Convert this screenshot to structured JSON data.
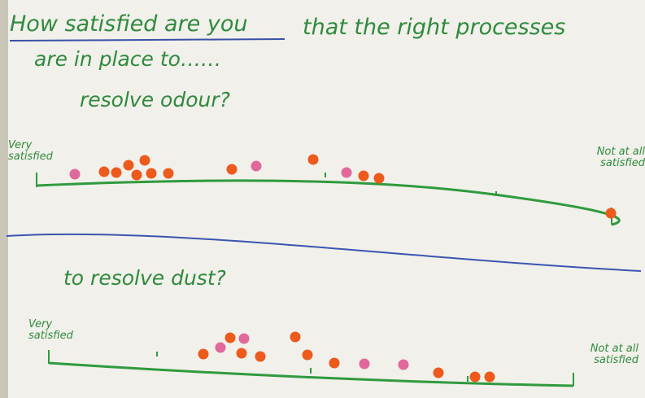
{
  "header": {
    "title_underlined": "How satisfied are you",
    "title_rest": "that the right processes",
    "title_line2": "are in place to……"
  },
  "sections": [
    {
      "question": "resolve odour?",
      "left_label": "Very satisfied",
      "right_label": "Not at all satisfied"
    },
    {
      "question": "to resolve dust?",
      "left_label": "Very satisfied",
      "right_label": "Not at all satisfied"
    }
  ]
}
